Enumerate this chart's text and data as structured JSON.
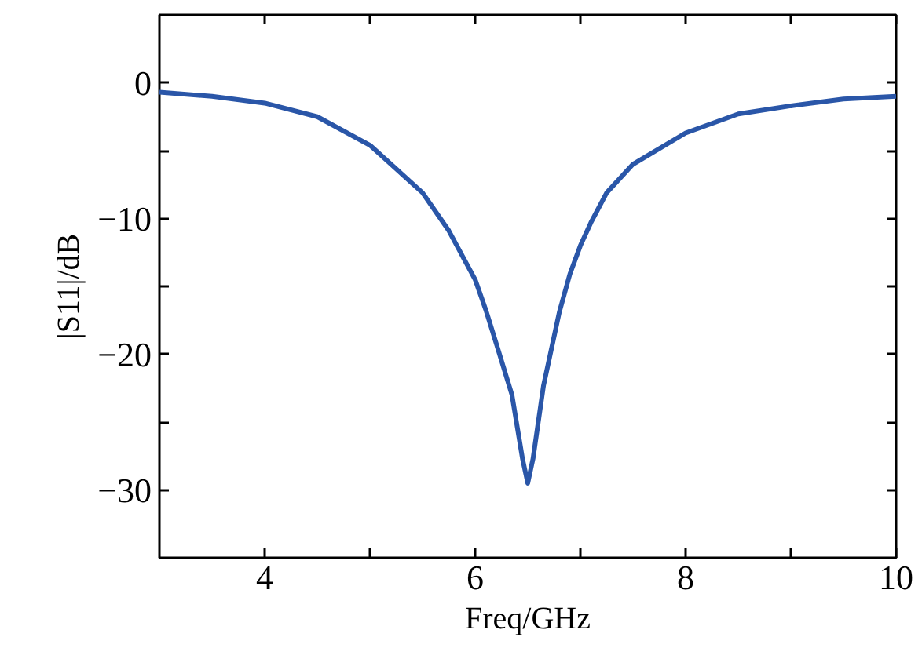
{
  "chart_data": {
    "type": "line",
    "xlabel": "Freq/GHz",
    "ylabel": "|S11|/dB",
    "x": [
      3,
      3.5,
      4,
      4.5,
      5,
      5.5,
      5.75,
      6,
      6.1,
      6.2,
      6.35,
      6.45,
      6.5,
      6.55,
      6.65,
      6.8,
      6.9,
      7,
      7.1,
      7.25,
      7.5,
      8,
      8.5,
      9,
      9.5,
      10
    ],
    "series": [
      {
        "color": "#2a56a8",
        "values": [
          -0.7,
          -1.0,
          -1.5,
          -2.5,
          -4.6,
          -8.1,
          -10.9,
          -14.5,
          -16.7,
          -19.2,
          -23,
          -27.7,
          -29.5,
          -27.7,
          -22.3,
          -16.9,
          -14.1,
          -12.0,
          -10.3,
          -8.1,
          -6.0,
          -3.7,
          -2.3,
          -1.7,
          -1.2,
          -1.0
        ]
      }
    ],
    "xlim": [
      3,
      10
    ],
    "ylim": [
      -35,
      5
    ],
    "xticks": [
      4,
      {
        "value": 5,
        "label": null
      },
      6,
      {
        "value": 7,
        "label": null
      },
      8,
      {
        "value": 9,
        "label": null
      },
      10
    ],
    "yticks": [
      {
        "value": -30,
        "label": "−30"
      },
      {
        "value": -25,
        "label": null
      },
      {
        "value": -20,
        "label": "−20"
      },
      {
        "value": -15,
        "label": null
      },
      {
        "value": -10,
        "label": "−10"
      },
      {
        "value": -5,
        "label": null
      },
      0
    ],
    "grid": false,
    "marker": "none",
    "line_style": "solid"
  }
}
